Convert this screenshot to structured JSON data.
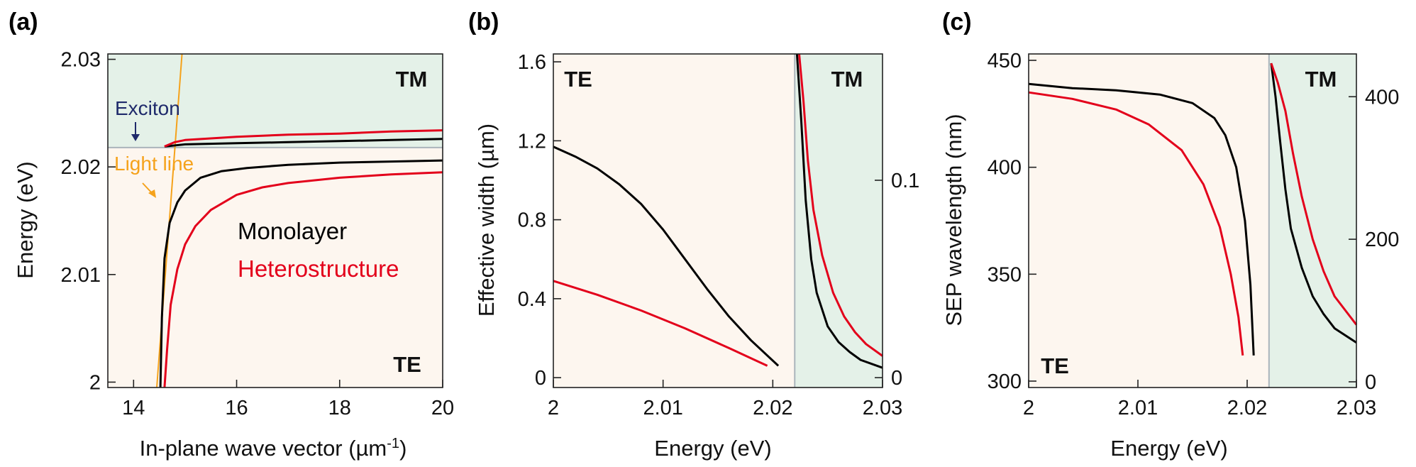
{
  "colors": {
    "te_region": "#fdf6ef",
    "tm_region": "#e4f1e8",
    "monolayer": "#000000",
    "heterostructure": "#e3001b",
    "light_line": "#f5a21b",
    "exciton": "#1f2a6b",
    "boundary": "#aab4bb"
  },
  "chart_data": [
    {
      "type": "line",
      "label": "(a)",
      "xlabel": "In-plane wave vector (µm",
      "xlabel_sup": "-1",
      "xlabel_end": ")",
      "ylabel": "Energy (eV)",
      "xlim": [
        13.5,
        20
      ],
      "ylim": [
        1.9995,
        2.0305
      ],
      "xticks": [
        14,
        16,
        18,
        20
      ],
      "xtick_labels": [
        "14",
        "16",
        "18",
        "20"
      ],
      "yticks": [
        2.0,
        2.01,
        2.02,
        2.03
      ],
      "ytick_labels": [
        "2",
        "2.01",
        "2.02",
        "2.03"
      ],
      "boundary_y": 2.0218,
      "regions": {
        "top": "TM",
        "bottom": "TE"
      },
      "legend": [
        "Monolayer",
        "Heterostructure"
      ],
      "annotations": {
        "exciton": "Exciton",
        "light_line": "Light line"
      },
      "light_line": {
        "x": [
          14.45,
          14.94
        ],
        "y": [
          1.9995,
          2.0305
        ]
      },
      "series": [
        {
          "name": "Monolayer (TE)",
          "x": [
            14.52,
            14.55,
            14.6,
            14.7,
            14.85,
            15.0,
            15.3,
            15.7,
            16.2,
            17.0,
            18.0,
            19.0,
            20.0
          ],
          "y": [
            1.9995,
            2.006,
            2.0115,
            2.0148,
            2.0167,
            2.0178,
            2.019,
            2.0196,
            2.0199,
            2.0202,
            2.0204,
            2.0205,
            2.0206
          ]
        },
        {
          "name": "Heterostructure (TE)",
          "x": [
            14.6,
            14.65,
            14.72,
            14.85,
            15.0,
            15.2,
            15.5,
            16.0,
            16.5,
            17.0,
            18.0,
            19.0,
            20.0
          ],
          "y": [
            1.9995,
            2.003,
            2.0072,
            2.0105,
            2.0128,
            2.0145,
            2.016,
            2.0174,
            2.0181,
            2.0185,
            2.019,
            2.0193,
            2.0195
          ]
        },
        {
          "name": "Monolayer (TM)",
          "x": [
            14.6,
            15.0,
            16.0,
            17.0,
            18.0,
            19.0,
            20.0
          ],
          "y": [
            2.0219,
            2.0221,
            2.0222,
            2.0223,
            2.0224,
            2.0225,
            2.0226
          ]
        },
        {
          "name": "Heterostructure (TM)",
          "x": [
            14.6,
            14.8,
            15.0,
            16.0,
            17.0,
            18.0,
            19.0,
            20.0
          ],
          "y": [
            2.0219,
            2.0223,
            2.0225,
            2.0228,
            2.023,
            2.0231,
            2.0233,
            2.0234
          ]
        }
      ]
    },
    {
      "type": "line",
      "label": "(b)",
      "xlabel": "Energy (eV)",
      "ylabel": "Effective width (µm)",
      "xlim": [
        2.0,
        2.03
      ],
      "ylim": [
        -0.05,
        1.64
      ],
      "xticks": [
        2.0,
        2.01,
        2.02,
        2.03
      ],
      "xtick_labels": [
        "2",
        "2.01",
        "2.02",
        "2.03"
      ],
      "yticks": [
        0,
        0.4,
        0.8,
        1.2,
        1.6
      ],
      "ytick_labels": [
        "0",
        "0.4",
        "0.8",
        "1.2",
        "1.6"
      ],
      "y2lim": [
        -0.005,
        0.164
      ],
      "y2ticks": [
        0,
        0.1
      ],
      "y2tick_labels": [
        "0",
        "0.1"
      ],
      "boundary_x": 2.022,
      "regions": {
        "left": "TE",
        "right": "TM"
      },
      "series": [
        {
          "name": "Monolayer (TE)",
          "x": [
            2.0,
            2.002,
            2.004,
            2.006,
            2.008,
            2.01,
            2.012,
            2.014,
            2.016,
            2.018,
            2.0205
          ],
          "y": [
            1.17,
            1.12,
            1.06,
            0.98,
            0.88,
            0.75,
            0.6,
            0.45,
            0.31,
            0.19,
            0.06
          ]
        },
        {
          "name": "Heterostructure (TE)",
          "x": [
            2.0,
            2.004,
            2.008,
            2.012,
            2.016,
            2.0195
          ],
          "y": [
            0.49,
            0.42,
            0.34,
            0.25,
            0.15,
            0.06
          ]
        },
        {
          "name": "Monolayer (TM)",
          "x": [
            2.0222,
            2.0226,
            2.023,
            2.0235,
            2.024,
            2.025,
            2.026,
            2.027,
            2.028,
            2.03
          ],
          "y": [
            0.164,
            0.13,
            0.09,
            0.06,
            0.043,
            0.026,
            0.018,
            0.013,
            0.009,
            0.005
          ]
        },
        {
          "name": "Heterostructure (TM)",
          "x": [
            2.0224,
            2.0228,
            2.0232,
            2.0237,
            2.0245,
            2.0255,
            2.0265,
            2.0275,
            2.0285,
            2.03
          ],
          "y": [
            0.164,
            0.14,
            0.11,
            0.085,
            0.062,
            0.043,
            0.031,
            0.023,
            0.017,
            0.011
          ]
        }
      ]
    },
    {
      "type": "line",
      "label": "(c)",
      "xlabel": "Energy (eV)",
      "ylabel": "SEP wavelength (nm)",
      "xlim": [
        2.0,
        2.03
      ],
      "ylim": [
        297,
        453
      ],
      "xticks": [
        2.0,
        2.01,
        2.02,
        2.03
      ],
      "xtick_labels": [
        "2",
        "2.01",
        "2.02",
        "2.03"
      ],
      "yticks": [
        300,
        350,
        400,
        450
      ],
      "ytick_labels": [
        "300",
        "350",
        "400",
        "450"
      ],
      "y2lim": [
        -8,
        460
      ],
      "y2ticks": [
        0,
        200,
        400
      ],
      "y2tick_labels": [
        "0",
        "200",
        "400"
      ],
      "boundary_x": 2.022,
      "regions": {
        "left": "TE",
        "right": "TM"
      },
      "series": [
        {
          "name": "Monolayer (TE)",
          "x": [
            2.0,
            2.004,
            2.008,
            2.012,
            2.015,
            2.017,
            2.018,
            2.019,
            2.0198,
            2.0203,
            2.0206
          ],
          "y": [
            439,
            437,
            436,
            434,
            430,
            423,
            415,
            400,
            375,
            345,
            312
          ]
        },
        {
          "name": "Heterostructure (TE)",
          "x": [
            2.0,
            2.004,
            2.008,
            2.011,
            2.014,
            2.016,
            2.0175,
            2.0185,
            2.0192,
            2.0196
          ],
          "y": [
            435,
            432,
            427,
            420,
            408,
            392,
            372,
            350,
            330,
            312
          ]
        },
        {
          "name": "Monolayer (TM)",
          "x": [
            2.0222,
            2.0226,
            2.023,
            2.0235,
            2.024,
            2.025,
            2.026,
            2.027,
            2.028,
            2.03
          ],
          "y": [
            447,
            400,
            340,
            270,
            215,
            160,
            120,
            95,
            75,
            55
          ]
        },
        {
          "name": "Heterostructure (TM)",
          "x": [
            2.0222,
            2.0228,
            2.0235,
            2.0242,
            2.025,
            2.026,
            2.027,
            2.028,
            2.03
          ],
          "y": [
            447,
            420,
            380,
            320,
            260,
            200,
            155,
            120,
            80
          ]
        }
      ]
    }
  ]
}
